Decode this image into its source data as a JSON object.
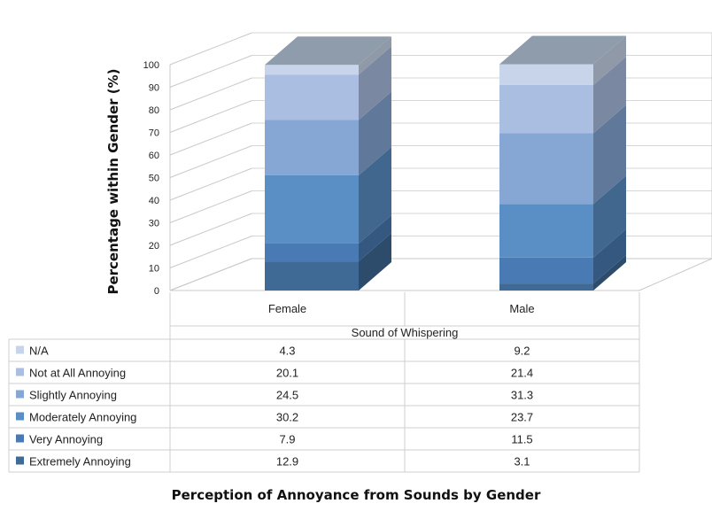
{
  "chart_data": {
    "type": "bar",
    "stacked": true,
    "three_d": true,
    "title": "Perception of Annoyance from Sounds by Gender",
    "xlabel": "Sound of Whispering",
    "ylabel": "Percentage within Gender (%)",
    "ylim": [
      0,
      100
    ],
    "yticks": [
      0,
      10,
      20,
      30,
      40,
      50,
      60,
      70,
      80,
      90,
      100
    ],
    "categories": [
      "Female",
      "Male"
    ],
    "legend_position": "data-table-left",
    "series": [
      {
        "name": "Extremely Annoying",
        "values": [
          12.9,
          3.1
        ],
        "color": "#3f6a96"
      },
      {
        "name": "Very Annoying",
        "values": [
          7.9,
          11.5
        ],
        "color": "#4a7ab3"
      },
      {
        "name": "Moderately Annoying",
        "values": [
          30.2,
          23.7
        ],
        "color": "#5a8fc6"
      },
      {
        "name": "Slightly Annoying",
        "values": [
          24.5,
          31.3
        ],
        "color": "#86a6d4"
      },
      {
        "name": "Not at All Annoying",
        "values": [
          20.1,
          21.4
        ],
        "color": "#a9bee0"
      },
      {
        "name": "N/A",
        "values": [
          4.3,
          9.2
        ],
        "color": "#c8d4ea"
      }
    ],
    "top_face_color": "#8e9cab",
    "grid": true
  }
}
